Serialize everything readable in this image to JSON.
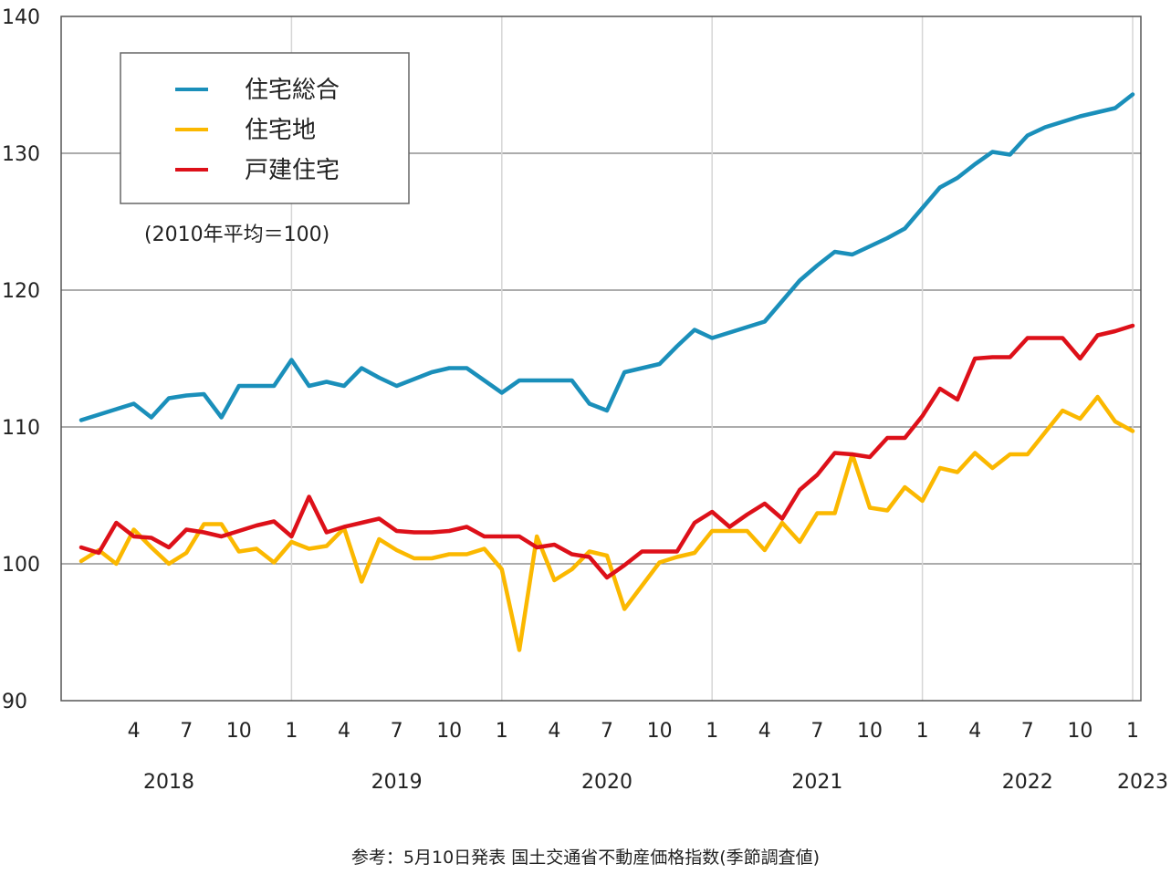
{
  "chart_data": {
    "type": "line",
    "x": [
      "2018-01",
      "2018-02",
      "2018-03",
      "2018-04",
      "2018-05",
      "2018-06",
      "2018-07",
      "2018-08",
      "2018-09",
      "2018-10",
      "2018-11",
      "2018-12",
      "2019-01",
      "2019-02",
      "2019-03",
      "2019-04",
      "2019-05",
      "2019-06",
      "2019-07",
      "2019-08",
      "2019-09",
      "2019-10",
      "2019-11",
      "2019-12",
      "2020-01",
      "2020-02",
      "2020-03",
      "2020-04",
      "2020-05",
      "2020-06",
      "2020-07",
      "2020-08",
      "2020-09",
      "2020-10",
      "2020-11",
      "2020-12",
      "2021-01",
      "2021-02",
      "2021-03",
      "2021-04",
      "2021-05",
      "2021-06",
      "2021-07",
      "2021-08",
      "2021-09",
      "2021-10",
      "2021-11",
      "2021-12",
      "2022-01",
      "2022-02",
      "2022-03",
      "2022-04",
      "2022-05",
      "2022-06",
      "2022-07",
      "2022-08",
      "2022-09",
      "2022-10",
      "2022-11",
      "2022-12",
      "2023-01"
    ],
    "series": [
      {
        "name": "住宅総合",
        "color": "#1a8fba",
        "values": [
          110.5,
          110.9,
          111.3,
          111.7,
          110.7,
          112.1,
          112.3,
          112.4,
          110.7,
          113.0,
          113.0,
          113.0,
          114.9,
          113.0,
          113.3,
          113.0,
          114.3,
          113.6,
          113.0,
          113.5,
          114.0,
          114.3,
          114.3,
          113.4,
          112.5,
          113.4,
          113.4,
          113.4,
          113.4,
          111.7,
          111.2,
          114.0,
          114.3,
          114.6,
          115.9,
          117.1,
          116.5,
          116.9,
          117.3,
          117.7,
          119.2,
          120.7,
          121.8,
          122.8,
          122.6,
          123.2,
          123.8,
          124.5,
          126.0,
          127.5,
          128.2,
          129.2,
          130.1,
          129.9,
          131.3,
          131.9,
          132.3,
          132.7,
          133.0,
          133.3,
          134.3
        ]
      },
      {
        "name": "住宅地",
        "color": "#fbb800",
        "values": [
          100.2,
          101.0,
          100.0,
          102.5,
          101.2,
          100.0,
          100.8,
          102.9,
          102.9,
          100.9,
          101.1,
          100.1,
          101.6,
          101.1,
          101.3,
          102.6,
          98.7,
          101.8,
          101.0,
          100.4,
          100.4,
          100.7,
          100.7,
          101.1,
          99.6,
          93.7,
          102.0,
          98.8,
          99.6,
          100.9,
          100.6,
          96.7,
          98.4,
          100.1,
          100.5,
          100.8,
          102.4,
          102.4,
          102.4,
          101.0,
          103.0,
          101.6,
          103.7,
          103.7,
          108.0,
          104.1,
          103.9,
          105.6,
          104.6,
          107.0,
          106.7,
          108.1,
          107.0,
          108.0,
          108.0,
          109.6,
          111.2,
          110.6,
          112.2,
          110.4,
          109.7
        ]
      },
      {
        "name": "戸建住宅",
        "color": "#dd1019",
        "values": [
          101.2,
          100.8,
          103.0,
          102.0,
          101.9,
          101.2,
          102.5,
          102.3,
          102.0,
          102.4,
          102.8,
          103.1,
          102.0,
          104.9,
          102.3,
          102.7,
          103.0,
          103.3,
          102.4,
          102.3,
          102.3,
          102.4,
          102.7,
          102.0,
          102.0,
          102.0,
          101.2,
          101.4,
          100.7,
          100.5,
          99.0,
          99.9,
          100.9,
          100.9,
          100.9,
          103.0,
          103.8,
          102.7,
          103.6,
          104.4,
          103.3,
          105.4,
          106.5,
          108.1,
          108.0,
          107.8,
          109.2,
          109.2,
          110.8,
          112.8,
          112.0,
          115.0,
          115.1,
          115.1,
          116.5,
          116.5,
          116.5,
          115.0,
          116.7,
          117.0,
          117.4
        ]
      }
    ],
    "ylim": [
      90,
      140
    ],
    "yticks": [
      "90",
      "100",
      "110",
      "120",
      "130",
      "140"
    ],
    "xtick_labels": [
      {
        "i": 3,
        "label": "4"
      },
      {
        "i": 6,
        "label": "7"
      },
      {
        "i": 9,
        "label": "10"
      },
      {
        "i": 12,
        "label": "1"
      },
      {
        "i": 15,
        "label": "4"
      },
      {
        "i": 18,
        "label": "7"
      },
      {
        "i": 21,
        "label": "10"
      },
      {
        "i": 24,
        "label": "1"
      },
      {
        "i": 27,
        "label": "4"
      },
      {
        "i": 30,
        "label": "7"
      },
      {
        "i": 33,
        "label": "10"
      },
      {
        "i": 36,
        "label": "1"
      },
      {
        "i": 39,
        "label": "4"
      },
      {
        "i": 42,
        "label": "7"
      },
      {
        "i": 45,
        "label": "10"
      },
      {
        "i": 48,
        "label": "1"
      },
      {
        "i": 51,
        "label": "4"
      },
      {
        "i": 54,
        "label": "7"
      },
      {
        "i": 57,
        "label": "10"
      },
      {
        "i": 60,
        "label": "1"
      }
    ],
    "year_labels": [
      {
        "i": 5,
        "label": "2018"
      },
      {
        "i": 18,
        "label": "2019"
      },
      {
        "i": 30,
        "label": "2020"
      },
      {
        "i": 42,
        "label": "2021"
      },
      {
        "i": 54,
        "label": "2022"
      },
      {
        "i": 60,
        "label": "2023"
      }
    ],
    "vgrid_at": [
      12,
      24,
      36,
      48,
      60
    ],
    "legend_position": "top-left",
    "grid": true,
    "note": "(2010年平均＝100)"
  },
  "caption": "参考：5月10日発表 国土交通省不動産価格指数(季節調査値)"
}
